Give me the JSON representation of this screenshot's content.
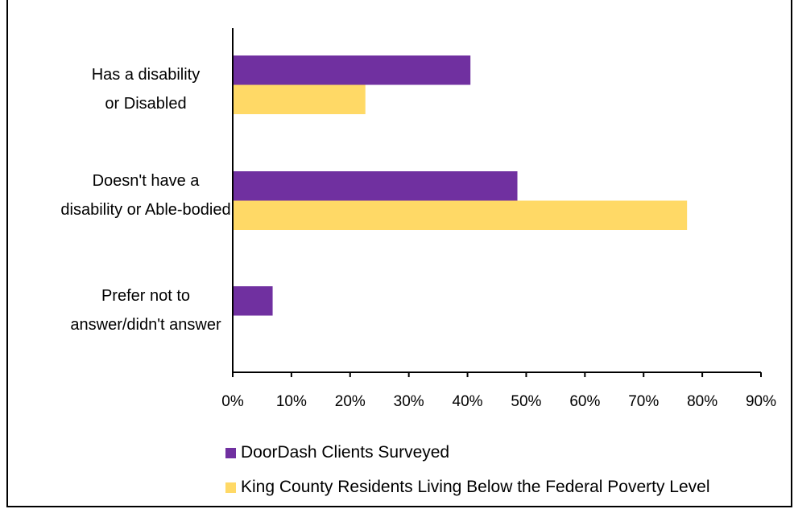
{
  "chart_data": {
    "type": "bar",
    "orientation": "horizontal",
    "title": "",
    "categories": [
      [
        "Has a disability",
        "or Disabled"
      ],
      [
        "Doesn't have a",
        "disability or Able-bodied"
      ],
      [
        "Prefer not to",
        "answer/didn't answer"
      ]
    ],
    "series": [
      {
        "name": "DoorDash Clients Surveyed",
        "color": "#7030A0",
        "values": [
          40.5,
          48.5,
          6.8
        ]
      },
      {
        "name": "King County Residents Living Below the Federal Poverty Level",
        "color": "#FFD966",
        "values": [
          22.6,
          77.4,
          0
        ]
      }
    ],
    "xlim": [
      0,
      90
    ],
    "x_ticks": [
      0,
      10,
      20,
      30,
      40,
      50,
      60,
      70,
      80,
      90
    ],
    "x_tick_labels": [
      "0%",
      "10%",
      "20%",
      "30%",
      "40%",
      "50%",
      "60%",
      "70%",
      "80%",
      "90%"
    ],
    "grid": false,
    "legend_position": "bottom"
  }
}
